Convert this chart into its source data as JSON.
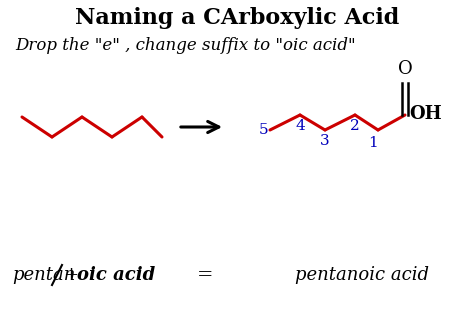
{
  "title": "Naming a CArboxylic Acid",
  "subtitle": "Drop the \"e\" , change suffix to \"oic acid\"",
  "background_color": "#ffffff",
  "title_fontsize": 16,
  "subtitle_fontsize": 12,
  "zigzag_color": "#cc0000",
  "blue_color": "#0000bb",
  "black_color": "#000000",
  "bottom_text_pentan": "pentan",
  "bottom_text_plus": "+ ",
  "bottom_text_oicacid": "oic acid",
  "bottom_text_eq": "=",
  "bottom_text_right": "pentanoic acid",
  "o_text": "O",
  "oh_text": "OH"
}
